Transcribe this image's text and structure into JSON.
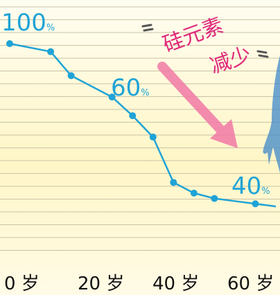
{
  "chart_data": {
    "type": "line",
    "x": [
      0,
      10,
      15,
      25,
      30,
      35,
      40,
      45,
      50,
      55,
      60,
      65
    ],
    "series": [
      {
        "values": [
          100,
          97,
          88,
          80,
          73,
          65,
          48,
          44,
          42,
          41,
          40,
          39
        ]
      }
    ],
    "xlim": [
      0,
      65
    ],
    "ylim": [
      38,
      100
    ],
    "x_ticks": [
      "0 岁",
      "20 岁",
      "40 岁",
      "60 岁"
    ],
    "annotations": {
      "label_100": {
        "value": "100",
        "unit": "%"
      },
      "label_60": {
        "value": "60",
        "unit": "%"
      },
      "label_40": {
        "value": "40",
        "unit": "%"
      },
      "caption_line1": "硅元素",
      "caption_line2": "减少"
    },
    "grid": true,
    "line_color": "#1fa3d6",
    "arrow_color": "#f27aa6"
  }
}
